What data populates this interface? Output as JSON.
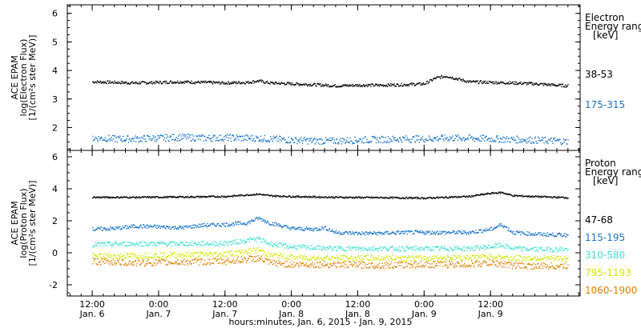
{
  "chart_data": [
    {
      "type": "scatter",
      "panel": "electron",
      "ylabel": [
        "ACE EPAM",
        "log(Electron Flux)",
        "[1/(cm²s ster MeV)]"
      ],
      "ylim": [
        1.2,
        6.3
      ],
      "yticks": [
        2,
        3,
        4,
        5,
        6
      ],
      "xlim_hours": [
        -4.5,
        88.2
      ],
      "legend": {
        "title": [
          "Electron",
          "Energy range",
          "[keV]"
        ],
        "entries": [
          {
            "label": "38-53",
            "color": "#000000"
          },
          {
            "label": "175-315",
            "color": "#1874cd"
          }
        ]
      },
      "series": [
        {
          "color": "#000000",
          "x": [
            0,
            4,
            8,
            12,
            16,
            20,
            24,
            28,
            30,
            32,
            36,
            40,
            44,
            48,
            52,
            56,
            60,
            62,
            64,
            66,
            68,
            72,
            76,
            80,
            84,
            86
          ],
          "y": [
            3.62,
            3.6,
            3.58,
            3.6,
            3.62,
            3.6,
            3.58,
            3.6,
            3.65,
            3.58,
            3.55,
            3.52,
            3.48,
            3.5,
            3.5,
            3.52,
            3.55,
            3.75,
            3.82,
            3.72,
            3.62,
            3.6,
            3.58,
            3.55,
            3.5,
            3.48
          ]
        },
        {
          "color": "#1874cd",
          "x": [
            0,
            4,
            8,
            12,
            16,
            20,
            24,
            28,
            32,
            36,
            40,
            44,
            48,
            52,
            56,
            60,
            64,
            68,
            72,
            76,
            80,
            84,
            86
          ],
          "y": [
            1.65,
            1.62,
            1.62,
            1.65,
            1.68,
            1.65,
            1.66,
            1.65,
            1.62,
            1.58,
            1.55,
            1.55,
            1.58,
            1.6,
            1.62,
            1.62,
            1.65,
            1.65,
            1.62,
            1.6,
            1.58,
            1.55,
            1.52
          ]
        }
      ]
    },
    {
      "type": "scatter",
      "panel": "proton",
      "ylabel": [
        "ACE EPAM",
        "log(Proton Flux)",
        "[1/(cm²s ster MeV)]"
      ],
      "ylim": [
        -2.7,
        6.4
      ],
      "yticks": [
        -2,
        0,
        2,
        4,
        6
      ],
      "xlim_hours": [
        -4.5,
        88.2
      ],
      "legend": {
        "title": [
          "Proton",
          "Energy range",
          "[keV]"
        ],
        "entries": [
          {
            "label": "47-68",
            "color": "#000000"
          },
          {
            "label": "115-195",
            "color": "#1874cd"
          },
          {
            "label": "310-580",
            "color": "#40e0d0"
          },
          {
            "label": "795-1193",
            "color": "#d2e600"
          },
          {
            "label": "1060-1900",
            "color": "#e08000"
          }
        ]
      },
      "series": [
        {
          "color": "#000000",
          "x": [
            0,
            8,
            16,
            24,
            30,
            32,
            36,
            44,
            52,
            60,
            64,
            68,
            72,
            74,
            76,
            80,
            84,
            86
          ],
          "y": [
            3.5,
            3.5,
            3.52,
            3.55,
            3.7,
            3.6,
            3.55,
            3.5,
            3.48,
            3.45,
            3.5,
            3.55,
            3.75,
            3.8,
            3.6,
            3.55,
            3.5,
            3.48
          ]
        },
        {
          "color": "#1874cd",
          "x": [
            0,
            4,
            8,
            12,
            16,
            20,
            24,
            28,
            30,
            32,
            36,
            40,
            42,
            44,
            48,
            52,
            56,
            60,
            64,
            68,
            72,
            74,
            76,
            80,
            84,
            86
          ],
          "y": [
            1.5,
            1.55,
            1.7,
            1.65,
            1.6,
            1.75,
            1.8,
            1.9,
            2.2,
            1.9,
            1.55,
            1.5,
            1.6,
            1.3,
            1.25,
            1.25,
            1.3,
            1.3,
            1.3,
            1.3,
            1.5,
            1.8,
            1.3,
            1.2,
            1.15,
            1.15
          ]
        },
        {
          "color": "#40e0d0",
          "x": [
            0,
            8,
            16,
            24,
            30,
            32,
            36,
            44,
            52,
            60,
            68,
            72,
            74,
            76,
            80,
            86
          ],
          "y": [
            0.55,
            0.6,
            0.6,
            0.62,
            0.9,
            0.6,
            0.4,
            0.3,
            0.3,
            0.3,
            0.3,
            0.4,
            0.5,
            0.3,
            0.25,
            0.25
          ]
        },
        {
          "color": "#d2e600",
          "x": [
            0,
            8,
            16,
            24,
            30,
            32,
            36,
            44,
            52,
            60,
            68,
            72,
            76,
            80,
            86
          ],
          "y": [
            -0.2,
            -0.15,
            -0.1,
            -0.05,
            0.2,
            -0.1,
            -0.25,
            -0.3,
            -0.3,
            -0.3,
            -0.25,
            -0.2,
            -0.3,
            -0.3,
            -0.35
          ]
        },
        {
          "color": "#e08000",
          "x": [
            0,
            8,
            16,
            24,
            30,
            32,
            36,
            44,
            52,
            60,
            68,
            72,
            76,
            80,
            86
          ],
          "y": [
            -0.5,
            -0.6,
            -0.55,
            -0.5,
            -0.3,
            -0.6,
            -0.7,
            -0.7,
            -0.75,
            -0.7,
            -0.7,
            -0.6,
            -0.75,
            -0.8,
            -0.8
          ]
        }
      ]
    }
  ],
  "x_axis": {
    "ticks": [
      {
        "hour": 0,
        "time": "12:00",
        "date": "Jan. 6"
      },
      {
        "hour": 12,
        "time": "0:00",
        "date": "Jan. 7"
      },
      {
        "hour": 24,
        "time": "12:00",
        "date": "Jan. 7"
      },
      {
        "hour": 36,
        "time": "0:00",
        "date": "Jan. 8"
      },
      {
        "hour": 48,
        "time": "12:00",
        "date": "Jan. 8"
      },
      {
        "hour": 60,
        "time": "0:00",
        "date": "Jan. 9"
      },
      {
        "hour": 72,
        "time": "12:00",
        "date": "Jan. 9"
      }
    ],
    "xlabel": "hours:minutes, Jan.  6, 2015 - Jan.  9, 2015"
  }
}
